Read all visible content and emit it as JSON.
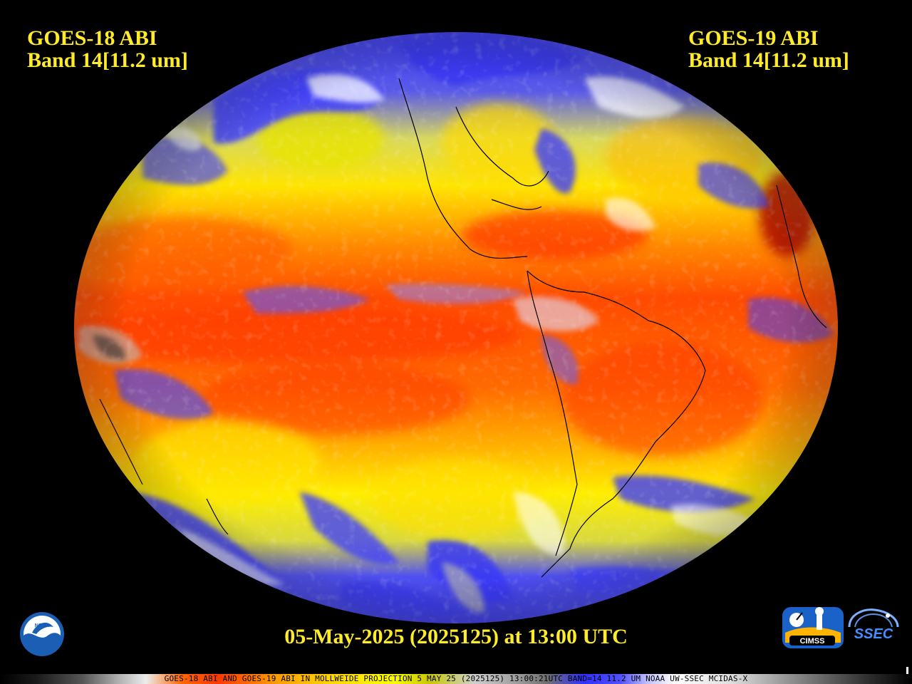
{
  "title_left": {
    "line1": "GOES-18 ABI",
    "line2": "Band 14[11.2 um]"
  },
  "title_right": {
    "line1": "GOES-19 ABI",
    "line2": "Band 14[11.2 um]"
  },
  "timestamp": "05-May-2025 (2025125) at 13:00 UTC",
  "footer": "GOES-18 ABI AND GOES-19 ABI IN MOLLWEIDE PROJECTION 5 MAY 25 (2025125) 13:00:21UTC BAND=14 11.2 UM NOAA UW-SSEC MCIDAS-X",
  "logos": {
    "noaa": "NOAA",
    "cimss": "CIMSS",
    "ssec": "SSEC"
  },
  "colors": {
    "label": "#ffeb2a",
    "warm": "#ff3c00",
    "mid": "#ffd000",
    "cloud_blue": "#3a3aff",
    "cloud_white": "#ffffff"
  }
}
